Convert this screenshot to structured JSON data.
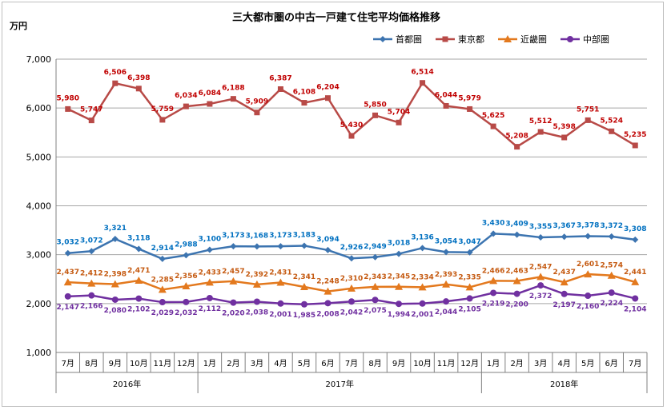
{
  "chart_data": {
    "type": "line",
    "title": "三大都市圏の中古一戸建て住宅平均価格推移",
    "unit_label": "万円",
    "ylim": [
      1000,
      7000
    ],
    "yticks": [
      "1,000",
      "2,000",
      "3,000",
      "4,000",
      "5,000",
      "6,000",
      "7,000"
    ],
    "grid": "horizontal",
    "legend_position": "top-right",
    "categories": [
      "7月",
      "8月",
      "9月",
      "10月",
      "11月",
      "12月",
      "1月",
      "2月",
      "3月",
      "4月",
      "5月",
      "6月",
      "7月",
      "8月",
      "9月",
      "10月",
      "11月",
      "12月",
      "1月",
      "2月",
      "3月",
      "4月",
      "5月",
      "6月",
      "7月"
    ],
    "year_groups": [
      {
        "label": "2016年",
        "span": 6
      },
      {
        "label": "2017年",
        "span": 12
      },
      {
        "label": "2018年",
        "span": 7
      }
    ],
    "series": [
      {
        "name": "首都圏",
        "color": "#3c74b0",
        "label_color": "#0070c0",
        "marker": "diamond",
        "values": [
          3032,
          3072,
          3321,
          3118,
          2914,
          2988,
          3100,
          3173,
          3168,
          3173,
          3183,
          3094,
          2926,
          2949,
          3018,
          3136,
          3054,
          3047,
          3430,
          3409,
          3355,
          3367,
          3378,
          3372,
          3308
        ],
        "labels": [
          "3,032",
          "3,072",
          "3,321",
          "3,118",
          "2,914",
          "2,988",
          "3,100",
          "3,173",
          "3,168",
          "3,173",
          "3,183",
          "3,094",
          "2,926",
          "2,949",
          "3,018",
          "3,136",
          "3,054",
          "3,047",
          "3,430",
          "3,409",
          "3,355",
          "3,367",
          "3,378",
          "3,372",
          "3,308"
        ]
      },
      {
        "name": "東京都",
        "color": "#b84a47",
        "label_color": "#c00000",
        "marker": "square",
        "values": [
          5980,
          5747,
          6506,
          6398,
          5759,
          6034,
          6084,
          6188,
          5909,
          6387,
          6108,
          6204,
          5430,
          5850,
          5704,
          6514,
          6044,
          5979,
          5625,
          5208,
          5512,
          5398,
          5751,
          5524,
          5235
        ],
        "labels": [
          "5,980",
          "5,747",
          "6,506",
          "6,398",
          "5,759",
          "6,034",
          "6,084",
          "6,188",
          "5,909",
          "6,387",
          "6,108",
          "6,204",
          "5,430",
          "5,850",
          "5,704",
          "6,514",
          "6,044",
          "5,979",
          "5,625",
          "5,208",
          "5,512",
          "5,398",
          "5,751",
          "5,524",
          "5,235"
        ]
      },
      {
        "name": "近畿圏",
        "color": "#e3791e",
        "label_color": "#c55a11",
        "marker": "triangle",
        "values": [
          2437,
          2412,
          2398,
          2471,
          2285,
          2356,
          2433,
          2457,
          2392,
          2431,
          2341,
          2248,
          2310,
          2343,
          2345,
          2334,
          2393,
          2335,
          2466,
          2463,
          2547,
          2437,
          2601,
          2574,
          2441
        ],
        "labels": [
          "2,437",
          "2,412",
          "2,398",
          "2,471",
          "2,285",
          "2,356",
          "2,433",
          "2,457",
          "2,392",
          "2,431",
          "2,341",
          "2,248",
          "2,310",
          "2,343",
          "2,345",
          "2,334",
          "2,393",
          "2,335",
          "2,466",
          "2,463",
          "2,547",
          "2,437",
          "2,601",
          "2,574",
          "2,441"
        ]
      },
      {
        "name": "中部圏",
        "color": "#7030a0",
        "label_color": "#7030a0",
        "marker": "circle",
        "values": [
          2147,
          2166,
          2080,
          2102,
          2029,
          2032,
          2112,
          2020,
          2038,
          2001,
          1985,
          2008,
          2042,
          2075,
          1994,
          2001,
          2044,
          2105,
          2219,
          2200,
          2372,
          2197,
          2160,
          2224,
          2104
        ],
        "labels": [
          "2,147",
          "2,166",
          "2,080",
          "2,102",
          "2,029",
          "2,032",
          "2,112",
          "2,020",
          "2,038",
          "2,001",
          "1,985",
          "2,008",
          "2,042",
          "2,075",
          "1,994",
          "2,001",
          "2,044",
          "2,105",
          "2,219",
          "2,200",
          "2,372",
          "2,197",
          "2,160",
          "2,224",
          "2,104"
        ]
      }
    ]
  }
}
